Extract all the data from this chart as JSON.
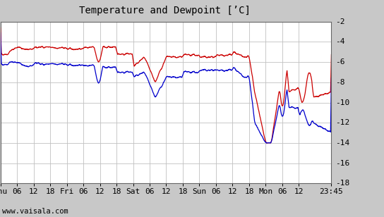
{
  "title": "Temperature and Dewpoint [’C]",
  "ylim": [
    -18,
    -2
  ],
  "yticks": [
    -18,
    -16,
    -14,
    -12,
    -10,
    -8,
    -6,
    -4,
    -2
  ],
  "plot_bg_color": "#ffffff",
  "fig_bg_color": "#c8c8c8",
  "grid_color": "#c0c0c0",
  "temp_color": "#cc0000",
  "dewp_color": "#0000cc",
  "line_width": 0.9,
  "x_tick_labels": [
    "Thu",
    "06",
    "12",
    "18",
    "Fri",
    "06",
    "12",
    "18",
    "Sat",
    "06",
    "12",
    "18",
    "Sun",
    "06",
    "12",
    "18",
    "Mon",
    "06",
    "12",
    "23:45"
  ],
  "x_tick_positions": [
    0,
    6,
    12,
    18,
    24,
    30,
    36,
    42,
    48,
    54,
    60,
    66,
    72,
    78,
    84,
    90,
    96,
    102,
    108,
    119.75
  ],
  "xlim": [
    0,
    119.75
  ],
  "watermark": "www.vaisala.com",
  "title_fontsize": 10,
  "tick_fontsize": 8,
  "watermark_fontsize": 7.5
}
